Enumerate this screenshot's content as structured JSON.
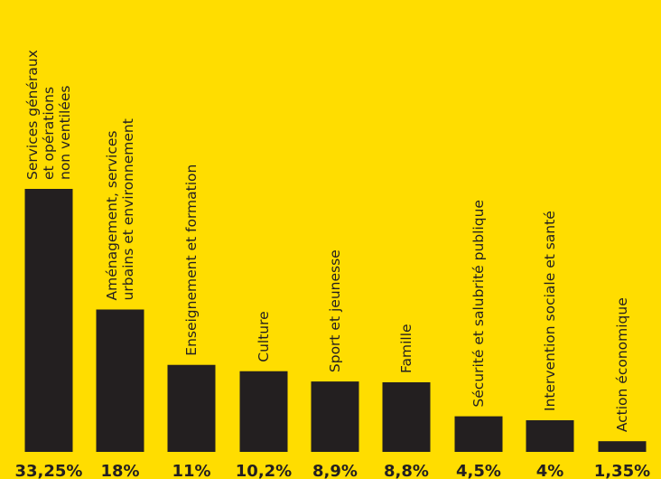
{
  "colors": {
    "background": "#FFDD00",
    "bar": "#231F20",
    "text": "#231F20"
  },
  "chart_data": {
    "type": "bar",
    "title": "",
    "xlabel": "",
    "ylabel": "",
    "categories": [
      [
        "Services généraux",
        "et opérations",
        "non ventilées"
      ],
      [
        "Aménagement, services",
        "urbains et environnement"
      ],
      [
        "Enseignement et formation"
      ],
      [
        "Culture"
      ],
      [
        "Sport et jeunesse"
      ],
      [
        "Famille"
      ],
      [
        "Sécurité et salubrité publique"
      ],
      [
        "Intervention sociale et santé"
      ],
      [
        "Action économique"
      ]
    ],
    "values": [
      33.25,
      18,
      11,
      10.2,
      8.9,
      8.8,
      4.5,
      4,
      1.35
    ],
    "value_labels": [
      "33,25%",
      "18%",
      "11%",
      "10,2%",
      "8,9%",
      "8,8%",
      "4,5%",
      "4%",
      "1,35%"
    ],
    "ylim": [
      0,
      33.25
    ],
    "grid": false,
    "legend": "none"
  }
}
